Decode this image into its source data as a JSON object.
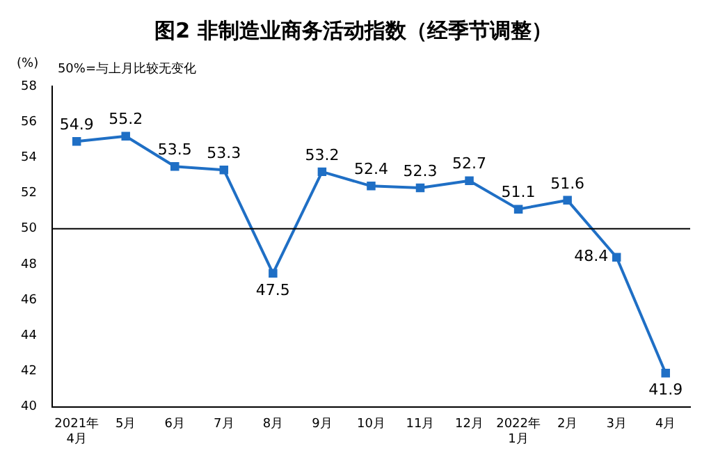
{
  "chart_data": {
    "type": "line",
    "title": "图2 非制造业商务活动指数（经季节调整）",
    "ylabel": "(%)",
    "annotations": [
      "50%=与上月比较无变化"
    ],
    "categories": [
      "2021年\n4月",
      "5月",
      "6月",
      "7月",
      "8月",
      "9月",
      "10月",
      "11月",
      "12月",
      "2022年\n1月",
      "2月",
      "3月",
      "4月"
    ],
    "series": [
      {
        "color": "#1f6fc5",
        "values": [
          54.9,
          55.2,
          53.5,
          53.3,
          47.5,
          53.2,
          52.4,
          52.3,
          52.7,
          51.1,
          51.6,
          48.4,
          41.9
        ]
      }
    ],
    "ylim": [
      40,
      58
    ],
    "yticks": [
      40,
      42,
      44,
      46,
      48,
      50,
      52,
      54,
      56,
      58
    ],
    "ref_lines": [
      {
        "axis": "y",
        "value": 50,
        "color": "#000000"
      }
    ],
    "data_labels": true,
    "grid": false,
    "legend": false,
    "marker": "square",
    "line_style": "solid"
  }
}
